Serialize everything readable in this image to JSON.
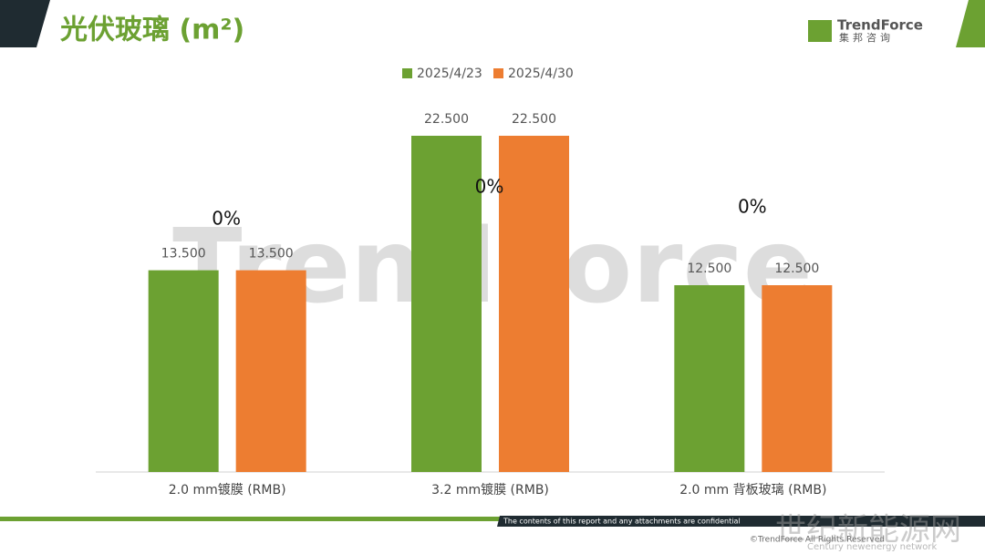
{
  "header": {
    "title": "光伏玻璃 (m²)",
    "logo": "TrendForce",
    "logo_sub": "集邦咨询"
  },
  "chart_data": {
    "type": "bar",
    "categories": [
      "2.0 mm镀膜 (RMB)",
      "3.2 mm镀膜 (RMB)",
      "2.0 mm 背板玻璃 (RMB)"
    ],
    "series": [
      {
        "name": "2025/4/23",
        "color": "#6ca132",
        "values": [
          13.5,
          22.5,
          12.5
        ],
        "value_labels": [
          "13.500",
          "22.500",
          "12.500"
        ]
      },
      {
        "name": "2025/4/30",
        "color": "#ed7d31",
        "values": [
          13.5,
          22.5,
          12.5
        ],
        "value_labels": [
          "13.500",
          "22.500",
          "12.500"
        ]
      }
    ],
    "annotations": [
      "0%",
      "0%",
      "0%"
    ],
    "legend": "top"
  },
  "watermark": "TrendForce",
  "footer": {
    "notice": "The contents of this report and any attachments are confidential",
    "copyright": "©TrendForce All Rights Reserved",
    "site": "世纪新能源网",
    "site_en": "Century newenergy network"
  }
}
